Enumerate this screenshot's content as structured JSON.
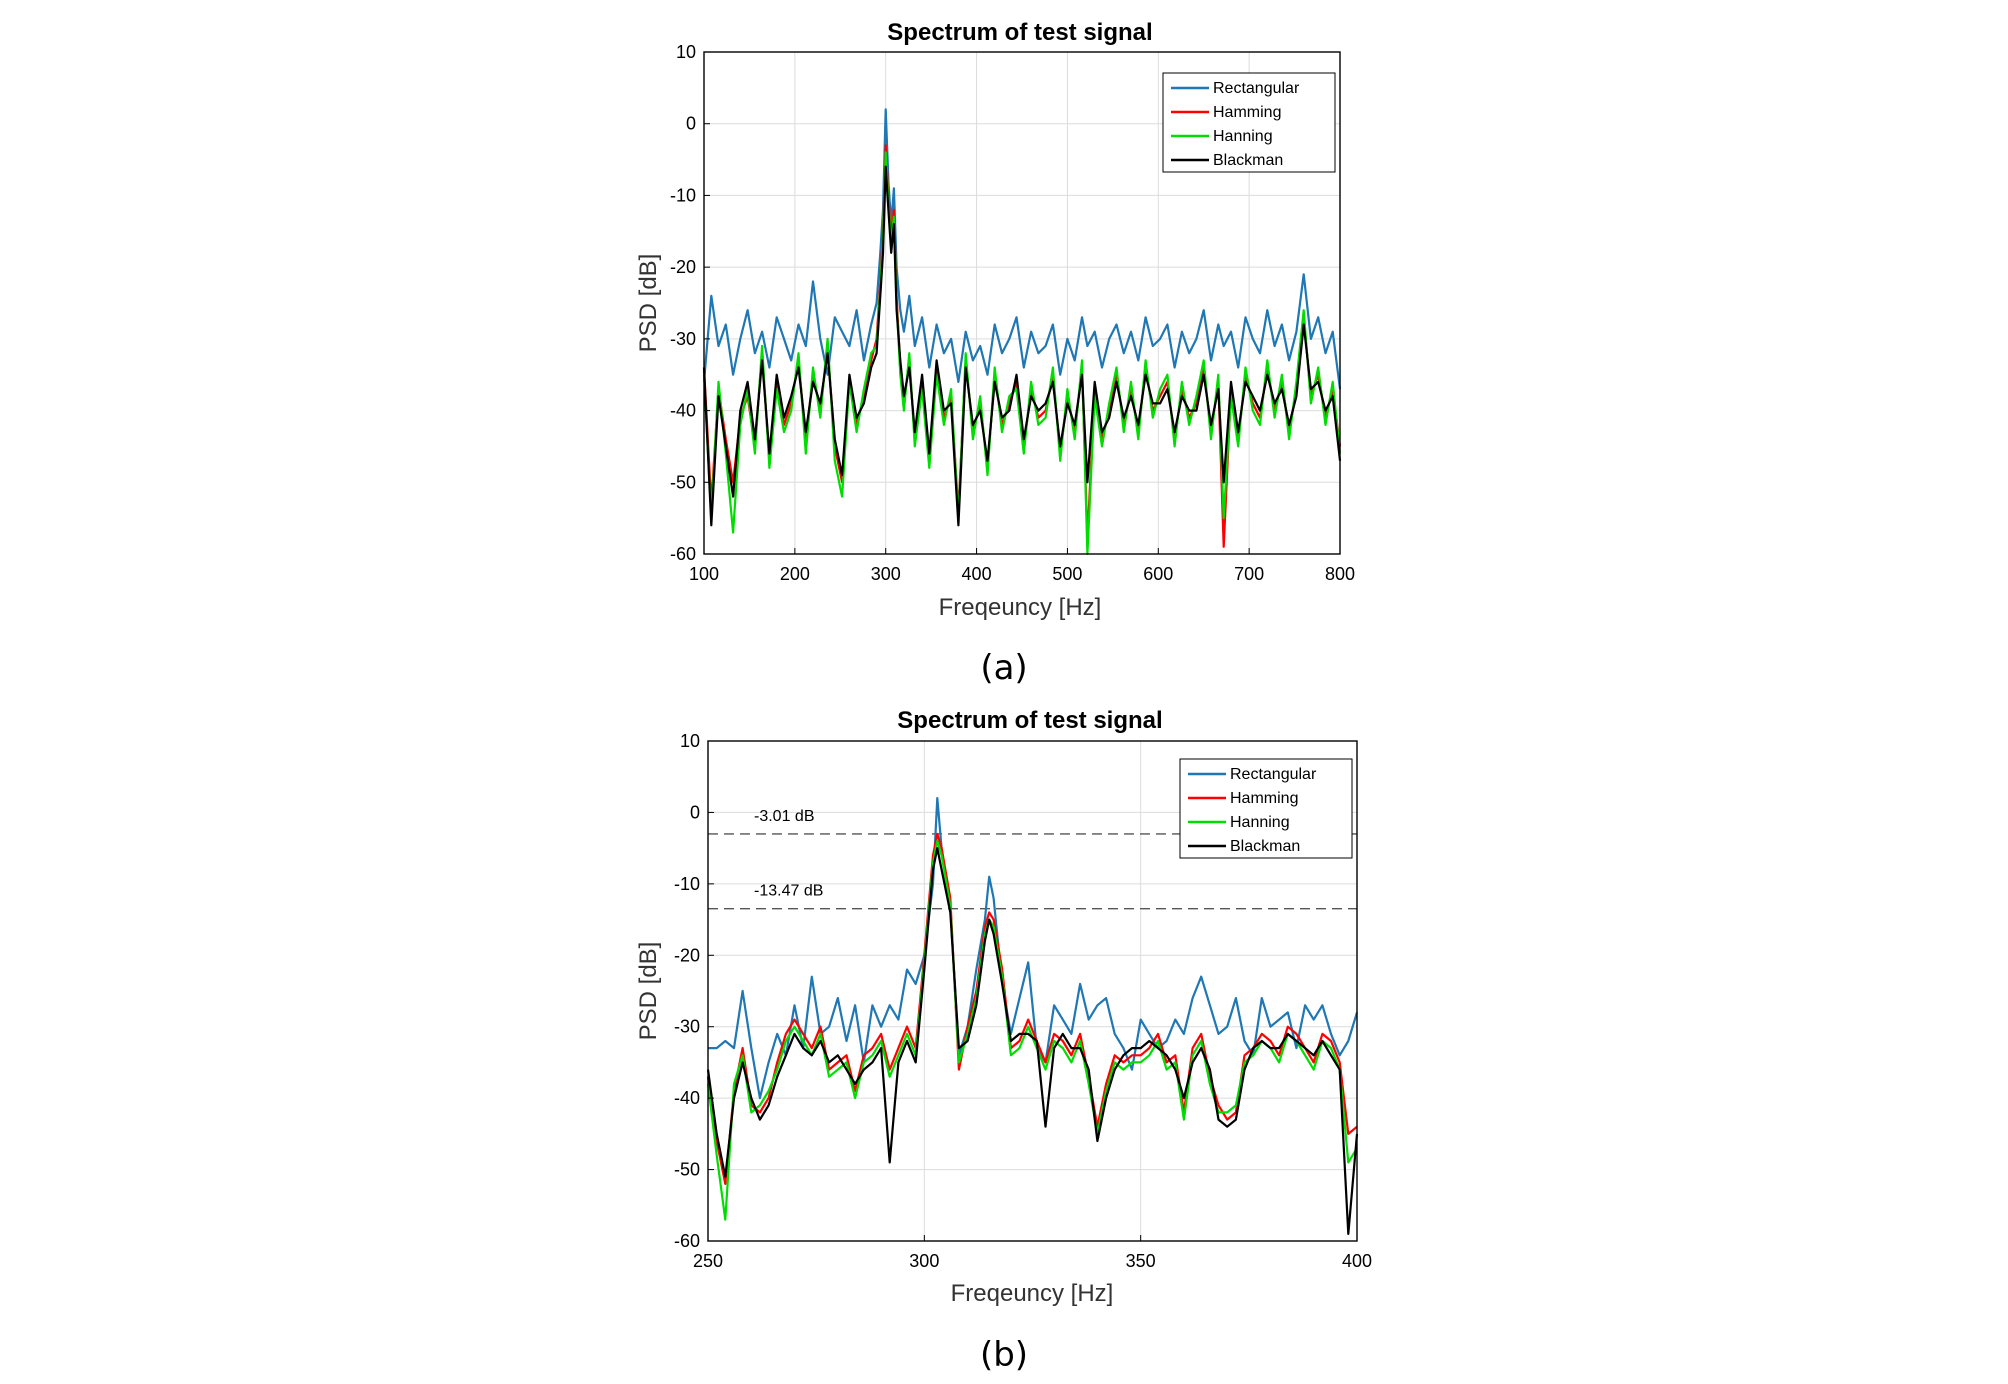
{
  "chart_data": [
    {
      "type": "line",
      "panel_label": "(a)",
      "title": "Spectrum of test signal",
      "xlabel": "Freqeuncy [Hz]",
      "ylabel": "PSD [dB]",
      "xlim": [
        100,
        800
      ],
      "ylim": [
        -60,
        10
      ],
      "xticks": [
        "100",
        "200",
        "300",
        "400",
        "500",
        "600",
        "700",
        "800"
      ],
      "yticks": [
        "10",
        "0",
        "-10",
        "-20",
        "-30",
        "-40",
        "-50",
        "-60"
      ],
      "grid": true,
      "legend_position": "top-right",
      "x": [
        100,
        108,
        116,
        124,
        132,
        140,
        148,
        156,
        164,
        172,
        180,
        188,
        196,
        204,
        212,
        220,
        228,
        236,
        244,
        252,
        260,
        268,
        276,
        284,
        290,
        294,
        297,
        300,
        303,
        306,
        309,
        312,
        316,
        320,
        326,
        332,
        340,
        348,
        356,
        364,
        372,
        380,
        388,
        396,
        404,
        412,
        420,
        428,
        436,
        444,
        452,
        460,
        468,
        476,
        484,
        492,
        500,
        508,
        516,
        522,
        530,
        538,
        546,
        554,
        562,
        570,
        578,
        586,
        594,
        602,
        610,
        618,
        626,
        634,
        642,
        650,
        658,
        666,
        672,
        680,
        688,
        696,
        704,
        712,
        720,
        728,
        736,
        744,
        752,
        760,
        768,
        776,
        784,
        792,
        800
      ],
      "series": [
        {
          "name": "Rectangular",
          "color": "#1f77b4",
          "values": [
            -36,
            -24,
            -31,
            -28,
            -35,
            -30,
            -26,
            -32,
            -29,
            -34,
            -27,
            -30,
            -33,
            -28,
            -31,
            -22,
            -30,
            -35,
            -27,
            -29,
            -31,
            -26,
            -33,
            -28,
            -25,
            -18,
            -12,
            2,
            -8,
            -14,
            -9,
            -20,
            -26,
            -29,
            -24,
            -31,
            -27,
            -34,
            -28,
            -32,
            -30,
            -36,
            -29,
            -33,
            -31,
            -35,
            -28,
            -32,
            -30,
            -27,
            -34,
            -29,
            -32,
            -31,
            -28,
            -35,
            -30,
            -33,
            -27,
            -31,
            -29,
            -34,
            -30,
            -28,
            -32,
            -29,
            -33,
            -27,
            -31,
            -30,
            -28,
            -34,
            -29,
            -32,
            -30,
            -26,
            -33,
            -28,
            -31,
            -29,
            -34,
            -27,
            -30,
            -32,
            -26,
            -31,
            -28,
            -33,
            -29,
            -21,
            -30,
            -27,
            -32,
            -29,
            -37
          ]
        },
        {
          "name": "Hamming",
          "color": "#ff0000",
          "values": [
            -34,
            -53,
            -37,
            -44,
            -50,
            -41,
            -38,
            -45,
            -32,
            -47,
            -36,
            -42,
            -39,
            -33,
            -44,
            -35,
            -40,
            -31,
            -45,
            -50,
            -36,
            -42,
            -38,
            -33,
            -30,
            -22,
            -15,
            -3,
            -10,
            -16,
            -12,
            -24,
            -34,
            -39,
            -33,
            -44,
            -36,
            -47,
            -34,
            -41,
            -38,
            -54,
            -33,
            -43,
            -39,
            -48,
            -35,
            -42,
            -39,
            -36,
            -45,
            -37,
            -41,
            -40,
            -35,
            -46,
            -38,
            -43,
            -34,
            -58,
            -37,
            -44,
            -40,
            -35,
            -42,
            -37,
            -43,
            -34,
            -40,
            -38,
            -36,
            -44,
            -37,
            -41,
            -39,
            -34,
            -43,
            -36,
            -59,
            -37,
            -44,
            -35,
            -39,
            -41,
            -34,
            -40,
            -36,
            -43,
            -37,
            -27,
            -38,
            -35,
            -41,
            -37,
            -45
          ]
        },
        {
          "name": "Hanning",
          "color": "#00dd00",
          "values": [
            -35,
            -55,
            -36,
            -46,
            -57,
            -42,
            -37,
            -46,
            -31,
            -48,
            -37,
            -43,
            -40,
            -32,
            -46,
            -34,
            -41,
            -30,
            -47,
            -52,
            -36,
            -43,
            -37,
            -32,
            -31,
            -23,
            -16,
            -4,
            -11,
            -17,
            -13,
            -25,
            -35,
            -40,
            -32,
            -45,
            -37,
            -48,
            -35,
            -42,
            -37,
            -55,
            -32,
            -44,
            -38,
            -49,
            -34,
            -43,
            -38,
            -37,
            -46,
            -36,
            -42,
            -41,
            -34,
            -47,
            -37,
            -44,
            -33,
            -60,
            -38,
            -45,
            -39,
            -34,
            -43,
            -36,
            -44,
            -33,
            -41,
            -37,
            -35,
            -45,
            -36,
            -42,
            -38,
            -33,
            -44,
            -35,
            -55,
            -38,
            -45,
            -34,
            -40,
            -42,
            -33,
            -41,
            -35,
            -44,
            -36,
            -26,
            -39,
            -34,
            -42,
            -36,
            -46
          ]
        },
        {
          "name": "Blackman",
          "color": "#000000",
          "values": [
            -34,
            -56,
            -38,
            -45,
            -52,
            -40,
            -36,
            -44,
            -33,
            -46,
            -35,
            -41,
            -38,
            -34,
            -43,
            -36,
            -39,
            -32,
            -44,
            -49,
            -35,
            -41,
            -39,
            -34,
            -32,
            -24,
            -18,
            -6,
            -12,
            -18,
            -14,
            -26,
            -33,
            -38,
            -34,
            -43,
            -35,
            -46,
            -33,
            -40,
            -39,
            -56,
            -34,
            -42,
            -40,
            -47,
            -36,
            -41,
            -40,
            -35,
            -44,
            -38,
            -40,
            -39,
            -36,
            -45,
            -39,
            -42,
            -35,
            -50,
            -36,
            -43,
            -41,
            -36,
            -41,
            -38,
            -42,
            -35,
            -39,
            -39,
            -37,
            -43,
            -38,
            -40,
            -40,
            -35,
            -42,
            -37,
            -50,
            -36,
            -43,
            -36,
            -38,
            -40,
            -35,
            -39,
            -37,
            -42,
            -38,
            -28,
            -37,
            -36,
            -40,
            -38,
            -47
          ]
        }
      ]
    },
    {
      "type": "line",
      "panel_label": "(b)",
      "title": "Spectrum of test signal",
      "xlabel": "Freqeuncy [Hz]",
      "ylabel": "PSD [dB]",
      "xlim": [
        250,
        400
      ],
      "ylim": [
        -60,
        10
      ],
      "xticks": [
        "250",
        "300",
        "350",
        "400"
      ],
      "yticks": [
        "10",
        "0",
        "-10",
        "-20",
        "-30",
        "-40",
        "-50",
        "-60"
      ],
      "grid": true,
      "legend_position": "top-right",
      "annotations": [
        {
          "text": "-3.01 dB",
          "y": -3.01
        },
        {
          "text": "-13.47 dB",
          "y": -13.47
        }
      ],
      "x": [
        250,
        252,
        254,
        256,
        258,
        260,
        262,
        264,
        266,
        268,
        270,
        272,
        274,
        276,
        278,
        280,
        282,
        284,
        286,
        288,
        290,
        292,
        294,
        296,
        298,
        300,
        302,
        303,
        304,
        306,
        308,
        310,
        312,
        314,
        315,
        316,
        318,
        320,
        322,
        324,
        326,
        328,
        330,
        332,
        334,
        336,
        338,
        340,
        342,
        344,
        346,
        348,
        350,
        352,
        354,
        356,
        358,
        360,
        362,
        364,
        366,
        368,
        370,
        372,
        374,
        376,
        378,
        380,
        382,
        384,
        386,
        388,
        390,
        392,
        394,
        396,
        398,
        400
      ],
      "series": [
        {
          "name": "Rectangular",
          "color": "#1f77b4",
          "values": [
            -33,
            -33,
            -32,
            -33,
            -25,
            -33,
            -40,
            -35,
            -31,
            -34,
            -27,
            -33,
            -23,
            -31,
            -30,
            -26,
            -32,
            -27,
            -35,
            -27,
            -30,
            -27,
            -29,
            -22,
            -24,
            -20,
            -10,
            2,
            -5,
            -13,
            -34,
            -30,
            -22,
            -15,
            -9,
            -12,
            -24,
            -31,
            -26,
            -21,
            -33,
            -35,
            -27,
            -29,
            -31,
            -24,
            -29,
            -27,
            -26,
            -31,
            -33,
            -36,
            -29,
            -31,
            -33,
            -32,
            -29,
            -31,
            -26,
            -23,
            -27,
            -31,
            -30,
            -26,
            -32,
            -34,
            -26,
            -30,
            -29,
            -28,
            -33,
            -27,
            -29,
            -27,
            -31,
            -34,
            -32,
            -28
          ]
        },
        {
          "name": "Hamming",
          "color": "#ff0000",
          "values": [
            -37,
            -46,
            -52,
            -39,
            -33,
            -41,
            -42,
            -40,
            -35,
            -31,
            -29,
            -31,
            -33,
            -30,
            -36,
            -35,
            -34,
            -39,
            -34,
            -33,
            -31,
            -36,
            -33,
            -30,
            -33,
            -20,
            -6,
            -3,
            -5,
            -12,
            -36,
            -30,
            -25,
            -16,
            -14,
            -15,
            -22,
            -33,
            -32,
            -29,
            -32,
            -35,
            -31,
            -32,
            -34,
            -31,
            -37,
            -44,
            -38,
            -34,
            -35,
            -34,
            -34,
            -33,
            -31,
            -35,
            -34,
            -42,
            -33,
            -31,
            -37,
            -41,
            -43,
            -42,
            -34,
            -33,
            -31,
            -32,
            -34,
            -30,
            -31,
            -33,
            -35,
            -31,
            -32,
            -35,
            -45,
            -44
          ]
        },
        {
          "name": "Hanning",
          "color": "#00dd00",
          "values": [
            -38,
            -48,
            -57,
            -38,
            -34,
            -42,
            -41,
            -39,
            -36,
            -32,
            -30,
            -32,
            -34,
            -31,
            -37,
            -36,
            -35,
            -40,
            -35,
            -34,
            -32,
            -37,
            -34,
            -31,
            -34,
            -21,
            -7,
            -4,
            -6,
            -13,
            -35,
            -31,
            -26,
            -17,
            -15,
            -16,
            -23,
            -34,
            -33,
            -30,
            -33,
            -36,
            -32,
            -33,
            -35,
            -32,
            -38,
            -45,
            -39,
            -35,
            -36,
            -35,
            -35,
            -34,
            -32,
            -36,
            -35,
            -43,
            -34,
            -32,
            -38,
            -42,
            -42,
            -41,
            -35,
            -34,
            -32,
            -33,
            -35,
            -31,
            -32,
            -34,
            -36,
            -32,
            -33,
            -36,
            -49,
            -47
          ]
        },
        {
          "name": "Blackman",
          "color": "#000000",
          "values": [
            -36,
            -45,
            -51,
            -40,
            -35,
            -40,
            -43,
            -41,
            -37,
            -34,
            -31,
            -33,
            -34,
            -32,
            -35,
            -34,
            -36,
            -38,
            -36,
            -35,
            -33,
            -49,
            -35,
            -32,
            -35,
            -22,
            -8,
            -5,
            -8,
            -14,
            -33,
            -32,
            -27,
            -18,
            -15,
            -17,
            -24,
            -32,
            -31,
            -31,
            -32,
            -44,
            -33,
            -31,
            -33,
            -33,
            -36,
            -46,
            -40,
            -36,
            -34,
            -33,
            -33,
            -32,
            -33,
            -34,
            -36,
            -40,
            -35,
            -33,
            -36,
            -43,
            -44,
            -43,
            -36,
            -33,
            -32,
            -33,
            -33,
            -31,
            -32,
            -33,
            -34,
            -32,
            -34,
            -36,
            -59,
            -45
          ]
        }
      ]
    }
  ]
}
